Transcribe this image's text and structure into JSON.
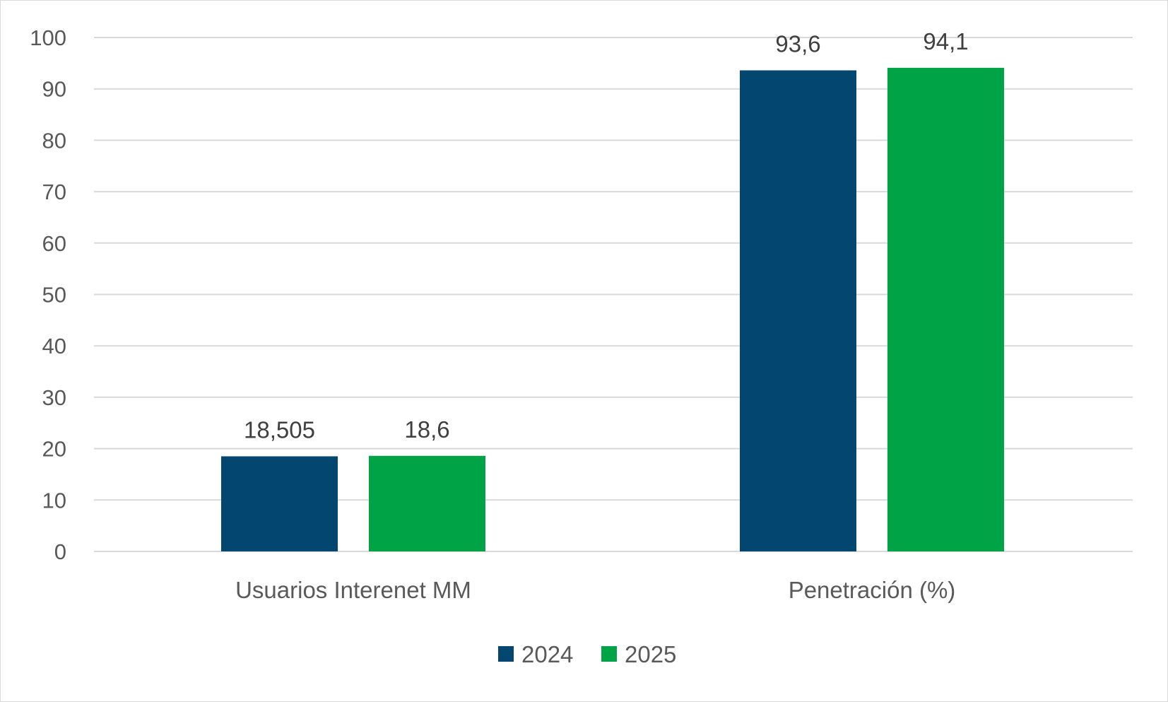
{
  "chart_data": {
    "type": "bar",
    "categories": [
      "Usuarios Interenet MM",
      "Penetración (%)"
    ],
    "series": [
      {
        "name": "2024",
        "color": "#03466f",
        "values": [
          18.505,
          93.6
        ],
        "labels": [
          "18,505",
          "93,6"
        ]
      },
      {
        "name": "2025",
        "color": "#00a447",
        "values": [
          18.6,
          94.1
        ],
        "labels": [
          "18,6",
          "94,1"
        ]
      }
    ],
    "ylim": [
      0,
      100
    ],
    "yticks": [
      0,
      10,
      20,
      30,
      40,
      50,
      60,
      70,
      80,
      90,
      100
    ],
    "grid": true,
    "legend": "bottom-center",
    "title": "",
    "xlabel": "",
    "ylabel": ""
  }
}
